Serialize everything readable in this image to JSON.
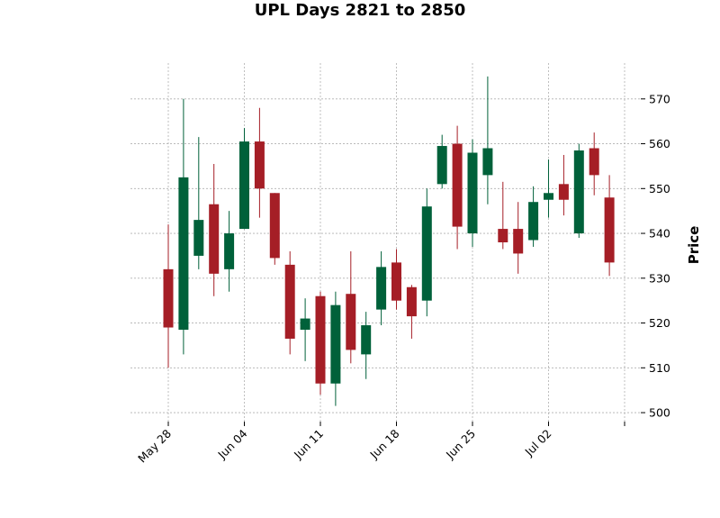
{
  "chart_data": {
    "type": "candlestick",
    "title": "UPL Days 2821 to 2850",
    "ylabel": "Price",
    "xlabel": "",
    "ylim": [
      498,
      578
    ],
    "yticks": [
      500,
      510,
      520,
      530,
      540,
      550,
      560,
      570
    ],
    "grid": true,
    "colors": {
      "up": "#00613a",
      "down": "#a51e26",
      "grid": "#b0b0b0"
    },
    "x_tick_labels": [
      {
        "label": "May 28",
        "index": 0
      },
      {
        "label": "Jun 04",
        "index": 5
      },
      {
        "label": "Jun 11",
        "index": 10
      },
      {
        "label": "Jun 18",
        "index": 15
      },
      {
        "label": "Jun 25",
        "index": 20
      },
      {
        "label": "Jul 02",
        "index": 25
      },
      {
        "label": "",
        "index": 30
      }
    ],
    "candles": [
      {
        "o": 532,
        "h": 542,
        "l": 510,
        "c": 519
      },
      {
        "o": 518.5,
        "h": 570,
        "l": 513,
        "c": 552.5
      },
      {
        "o": 535,
        "h": 561.5,
        "l": 532,
        "c": 543
      },
      {
        "o": 546.5,
        "h": 555.5,
        "l": 526,
        "c": 531
      },
      {
        "o": 532,
        "h": 545,
        "l": 527,
        "c": 540
      },
      {
        "o": 541,
        "h": 563.5,
        "l": 541,
        "c": 560.5
      },
      {
        "o": 560.5,
        "h": 568,
        "l": 543.5,
        "c": 550
      },
      {
        "o": 549,
        "h": 549,
        "l": 533,
        "c": 534.5
      },
      {
        "o": 533,
        "h": 536,
        "l": 513,
        "c": 516.5
      },
      {
        "o": 518.5,
        "h": 525.5,
        "l": 511.5,
        "c": 521
      },
      {
        "o": 526,
        "h": 527,
        "l": 504,
        "c": 506.5
      },
      {
        "o": 506.5,
        "h": 527,
        "l": 501.5,
        "c": 524
      },
      {
        "o": 526.5,
        "h": 536,
        "l": 511,
        "c": 514
      },
      {
        "o": 513,
        "h": 522.5,
        "l": 507.5,
        "c": 519.5
      },
      {
        "o": 523,
        "h": 536,
        "l": 519.5,
        "c": 532.5
      },
      {
        "o": 533.5,
        "h": 536.5,
        "l": 523,
        "c": 525
      },
      {
        "o": 528,
        "h": 528.5,
        "l": 516.5,
        "c": 521.5
      },
      {
        "o": 525,
        "h": 550,
        "l": 521.5,
        "c": 546
      },
      {
        "o": 551,
        "h": 562,
        "l": 550,
        "c": 559.5
      },
      {
        "o": 560,
        "h": 564,
        "l": 536.5,
        "c": 541.5
      },
      {
        "o": 540,
        "h": 561,
        "l": 537,
        "c": 558
      },
      {
        "o": 553,
        "h": 575,
        "l": 546.5,
        "c": 559
      },
      {
        "o": 541,
        "h": 551.5,
        "l": 536.5,
        "c": 538
      },
      {
        "o": 541,
        "h": 547,
        "l": 531,
        "c": 535.5
      },
      {
        "o": 538.5,
        "h": 550.5,
        "l": 537,
        "c": 547
      },
      {
        "o": 547.5,
        "h": 556.5,
        "l": 543.5,
        "c": 549
      },
      {
        "o": 551,
        "h": 557.5,
        "l": 544,
        "c": 547.5
      },
      {
        "o": 540,
        "h": 560,
        "l": 539,
        "c": 558.5
      },
      {
        "o": 559,
        "h": 562.5,
        "l": 548.5,
        "c": 553
      },
      {
        "o": 548,
        "h": 553,
        "l": 530.5,
        "c": 533.5
      }
    ]
  }
}
